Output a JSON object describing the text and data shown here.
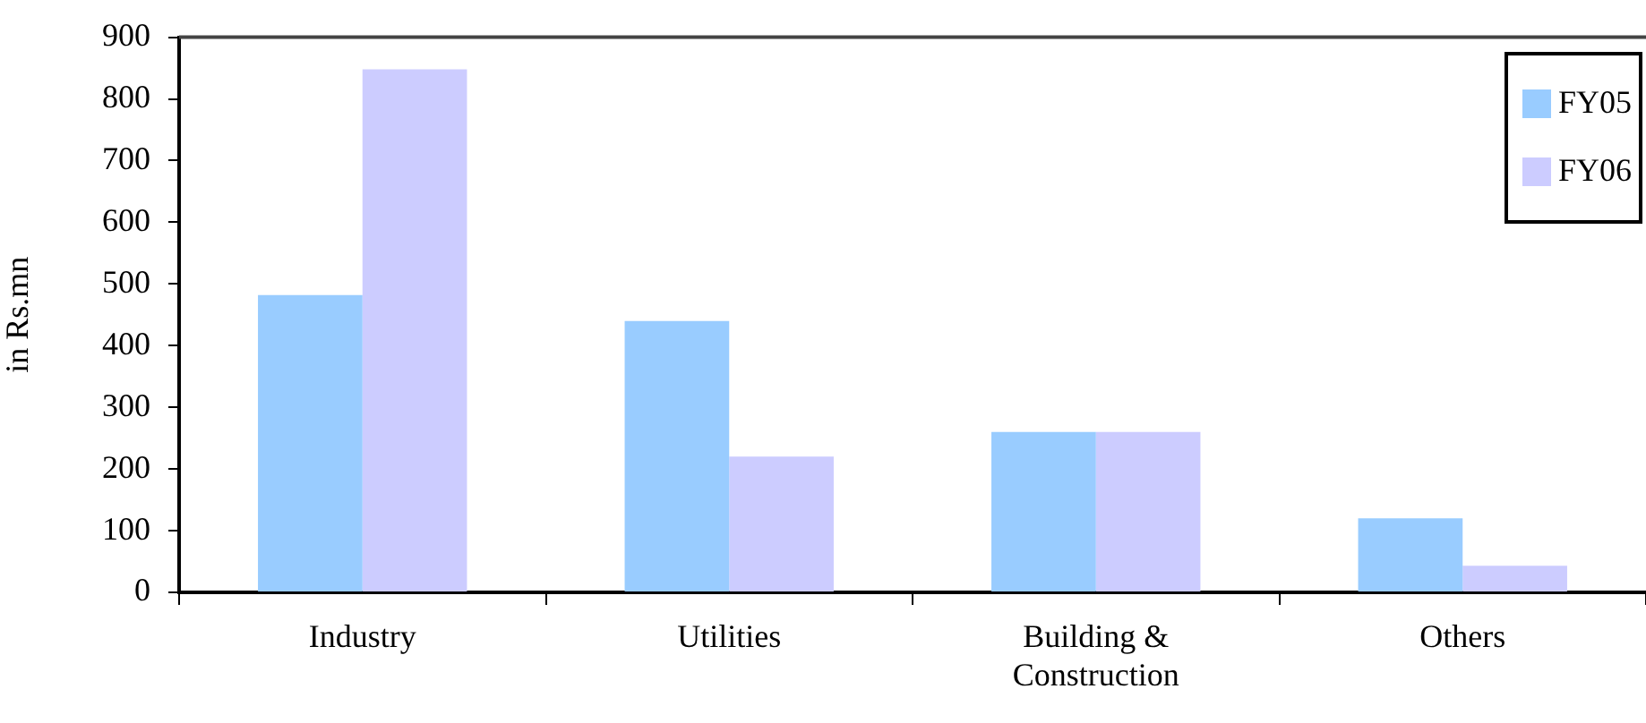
{
  "chart_data": {
    "type": "bar",
    "ylabel": "in Rs.mn",
    "categories": [
      "Industry",
      "Utilities",
      "Building & Construction",
      "Others"
    ],
    "series": [
      {
        "name": "FY05",
        "color": "#99ccff",
        "values": [
          482,
          440,
          260,
          120
        ]
      },
      {
        "name": "FY06",
        "color": "#ccccff",
        "values": [
          848,
          220,
          260,
          43
        ]
      }
    ],
    "ylim": [
      0,
      900
    ],
    "yticks": [
      0,
      100,
      200,
      300,
      400,
      500,
      600,
      700,
      800,
      900
    ],
    "grid": false,
    "legend": "top right"
  }
}
